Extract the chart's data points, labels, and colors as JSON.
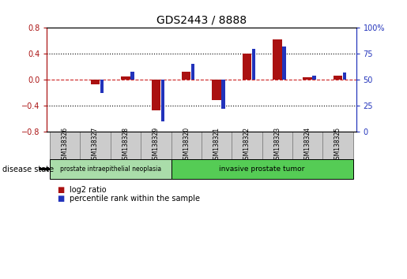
{
  "title": "GDS2443 / 8888",
  "samples": [
    "GSM138326",
    "GSM138327",
    "GSM138328",
    "GSM138329",
    "GSM138320",
    "GSM138321",
    "GSM138322",
    "GSM138323",
    "GSM138324",
    "GSM138325"
  ],
  "log2_ratio": [
    0.0,
    -0.07,
    0.05,
    -0.48,
    0.12,
    -0.32,
    0.4,
    0.62,
    0.04,
    0.06
  ],
  "percentile_rank": [
    50,
    37,
    58,
    10,
    65,
    22,
    80,
    82,
    54,
    57
  ],
  "ylim": [
    -0.8,
    0.8
  ],
  "yticks_left": [
    -0.8,
    -0.4,
    0.0,
    0.4,
    0.8
  ],
  "yticks_right": [
    0,
    25,
    50,
    75,
    100
  ],
  "red_bar_width": 0.3,
  "blue_bar_width": 0.12,
  "red_color": "#aa1111",
  "blue_color": "#2233bb",
  "dashed_red_color": "#cc2222",
  "group1_label": "prostate intraepithelial neoplasia",
  "group2_label": "invasive prostate tumor",
  "group1_indices": [
    0,
    1,
    2,
    3
  ],
  "group2_indices": [
    4,
    5,
    6,
    7,
    8,
    9
  ],
  "legend1": "log2 ratio",
  "legend2": "percentile rank within the sample",
  "disease_state_label": "disease state",
  "group1_color": "#aaddaa",
  "group2_color": "#55cc55",
  "sample_box_color": "#cccccc",
  "background_color": "#ffffff"
}
